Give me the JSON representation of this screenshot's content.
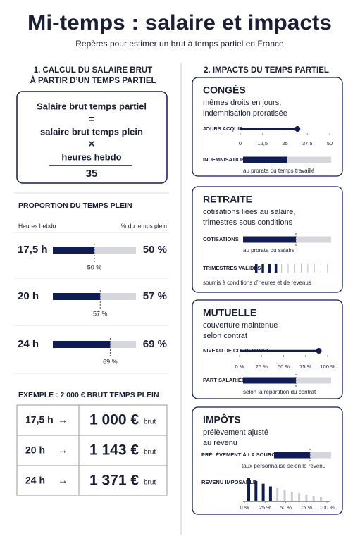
{
  "header": {
    "title": "Mi-temps : salaire et impacts",
    "subtitle": "Repères pour estimer un brut à temps partiel en France"
  },
  "calcul": {
    "heading": [
      "1. CALCUL DU SALAIRE BRUT",
      "À PARTIR D’UN TEMPS PARTIEL"
    ],
    "formula": {
      "result": "Salaire brut temps partiel",
      "equals": "=",
      "base": "salaire brut temps plein",
      "times": "×",
      "numerator": "heures hebdo",
      "denominator": "35"
    }
  },
  "proportion": {
    "title": "PROPORTION DU TEMPS PLEIN",
    "col_hours": "Heures hebdo",
    "col_percent": "% du temps plein",
    "xlim": [
      0,
      100
    ],
    "rows": [
      {
        "hours": "17,5 h",
        "value": 50,
        "value_label": "50 %"
      },
      {
        "hours": "20 h",
        "value": 57,
        "value_label": "57 %"
      },
      {
        "hours": "24 h",
        "value": 69,
        "value_label": "69 %"
      }
    ]
  },
  "example": {
    "title": "EXEMPLE : 2 000 € BRUT TEMPS PLEIN",
    "arrow": "→",
    "unit": "brut",
    "rows": [
      {
        "hours": "17,5 h",
        "amount": "1 000 €"
      },
      {
        "hours": "20 h",
        "amount": "1 143 €"
      },
      {
        "hours": "24 h",
        "amount": "1 371 €"
      }
    ]
  },
  "impacts": {
    "heading": "2. IMPACTS DU TEMPS PARTIEL",
    "conges": {
      "title": "CONGÉS",
      "description": [
        "mêmes droits en jours,",
        "indemnisation proratisée"
      ],
      "days": {
        "label": "JOURS ACQUIS",
        "value": 32,
        "xlim": [
          0,
          50
        ],
        "xticks": [
          0,
          {
            "value": 12.5,
            "label": "12,5"
          },
          25,
          {
            "value": 37.5,
            "label": "37,5"
          },
          50
        ]
      },
      "pay": {
        "label": "INDEMNISATION",
        "value": 50,
        "xlim": [
          0,
          100
        ],
        "note": "au prorata du temps travaillé"
      }
    },
    "retraite": {
      "title": "RETRAITE",
      "description": [
        "cotisations liées au salaire,",
        "trimestres sous conditions"
      ],
      "contributions": {
        "label": "COTISATIONS",
        "value": 60,
        "xlim": [
          0,
          100
        ],
        "note": "au prorata du salaire"
      },
      "quarters": {
        "label": "TRIMESTRES VALIDÉS",
        "validated": 4,
        "total": 12,
        "note": "soumis à conditions d’heures et de revenus"
      }
    },
    "mutuelle": {
      "title": "MUTUELLE",
      "description": [
        "couverture maintenue",
        "selon contrat"
      ],
      "coverage": {
        "label": "NIVEAU DE COUVERTURE",
        "value": 90,
        "xlim": [
          0,
          100
        ],
        "xticks": [
          {
            "value": 0,
            "label": "0 %"
          },
          {
            "value": 25,
            "label": "25 %"
          },
          {
            "value": 50,
            "label": "50 %"
          },
          {
            "value": 75,
            "label": "75 %"
          },
          {
            "value": 100,
            "label": "100 %"
          }
        ]
      },
      "share": {
        "label": "PART SALARIÉE",
        "value": 60,
        "xlim": [
          0,
          100
        ],
        "note": "selon la répartition du contrat"
      }
    },
    "impots": {
      "title": "IMPÔTS",
      "description": [
        "prélèvement ajusté",
        "au revenu"
      ],
      "withholding": {
        "label": "PRÉLÈVEMENT À LA SOURCE",
        "value": 63,
        "xlim": [
          0,
          100
        ],
        "note": "taux personnalisé selon le revenu"
      },
      "income": {
        "label": "REVENU IMPOSABLE",
        "values": [
          100,
          88,
          76,
          64,
          56,
          48,
          40,
          34,
          28,
          22,
          18
        ],
        "highlighted": 4,
        "ylim": [
          0,
          100
        ],
        "xlim": [
          0,
          100
        ],
        "xticks": [
          {
            "value": 0,
            "label": "0 %"
          },
          {
            "value": 25,
            "label": "25 %"
          },
          {
            "value": 50,
            "label": "50 %"
          },
          {
            "value": 75,
            "label": "75 %"
          },
          {
            "value": 100,
            "label": "100 %"
          }
        ]
      }
    }
  }
}
